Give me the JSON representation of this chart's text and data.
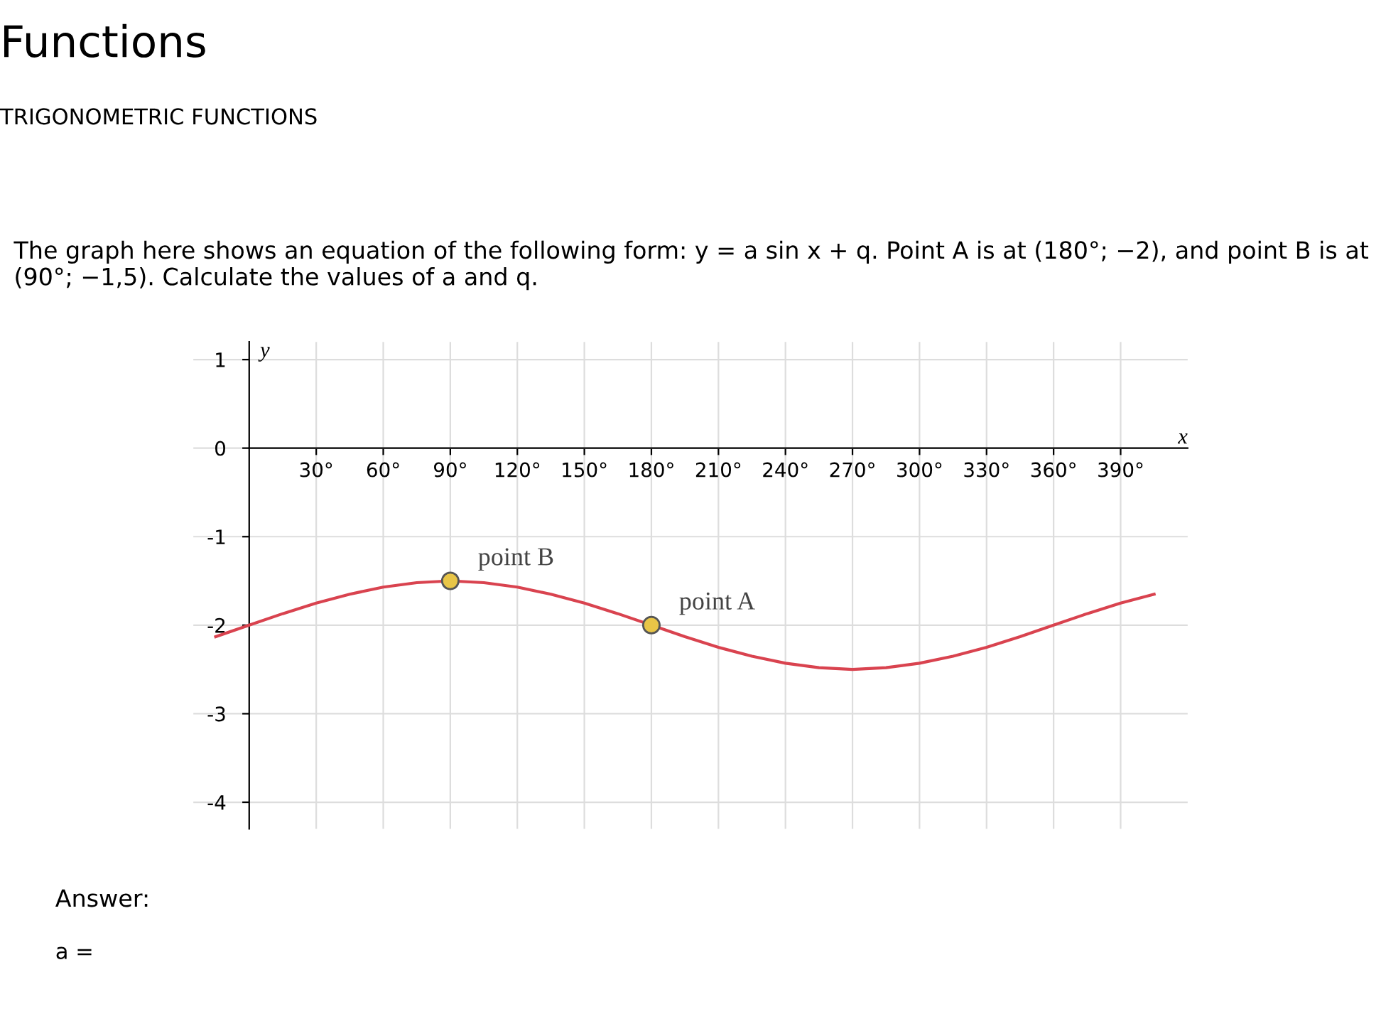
{
  "chart_data": {
    "type": "line",
    "title": "Functions",
    "subtitle": "TRIGONOMETRIC FUNCTIONS",
    "xlabel": "x",
    "ylabel": "y",
    "annotations": [
      "The graph here shows an equation of the following form: y = a sin x + q. Point A is at (180°; −2), and point B is at (90°; −1,5). Calculate the values of a and q.",
      "Answer:",
      "a =",
      {
        "text": "point B",
        "x": 90,
        "y": -1.5
      },
      {
        "text": "point A",
        "x": 180,
        "y": -2
      }
    ],
    "series": [
      {
        "color": "#d9434f",
        "marker": "none",
        "x": [
          -15,
          0,
          15,
          30,
          45,
          60,
          75,
          90,
          105,
          120,
          135,
          150,
          165,
          180,
          195,
          210,
          225,
          240,
          255,
          270,
          285,
          300,
          315,
          330,
          345,
          360,
          375,
          390,
          405
        ],
        "values": [
          -2.13,
          -2,
          -1.87,
          -1.75,
          -1.65,
          -1.57,
          -1.52,
          -1.5,
          -1.52,
          -1.57,
          -1.65,
          -1.75,
          -1.87,
          -2,
          -2.13,
          -2.25,
          -2.35,
          -2.43,
          -2.48,
          -2.5,
          -2.48,
          -2.43,
          -2.35,
          -2.25,
          -2.13,
          -2,
          -1.87,
          -1.75,
          -1.65
        ]
      },
      {
        "type": "scatter",
        "color": "#e8c547",
        "marker": "circle",
        "x": [
          90,
          180
        ],
        "values": [
          -1.5,
          -2
        ]
      }
    ],
    "xlim": [
      -25,
      420
    ],
    "ylim": [
      -4.3,
      1.2
    ],
    "xticks": [
      {
        "value": 30,
        "label": "30°"
      },
      {
        "value": 60,
        "label": "60°"
      },
      {
        "value": 90,
        "label": "90°"
      },
      {
        "value": 120,
        "label": "120°"
      },
      {
        "value": 150,
        "label": "150°"
      },
      {
        "value": 180,
        "label": "180°"
      },
      {
        "value": 210,
        "label": "210°"
      },
      {
        "value": 240,
        "label": "240°"
      },
      {
        "value": 270,
        "label": "270°"
      },
      {
        "value": 300,
        "label": "300°"
      },
      {
        "value": 330,
        "label": "330°"
      },
      {
        "value": 360,
        "label": "360°"
      },
      {
        "value": 390,
        "label": "390°"
      }
    ],
    "yticks": [
      1,
      0,
      -1,
      -2,
      -3,
      -4
    ],
    "grid": true
  }
}
